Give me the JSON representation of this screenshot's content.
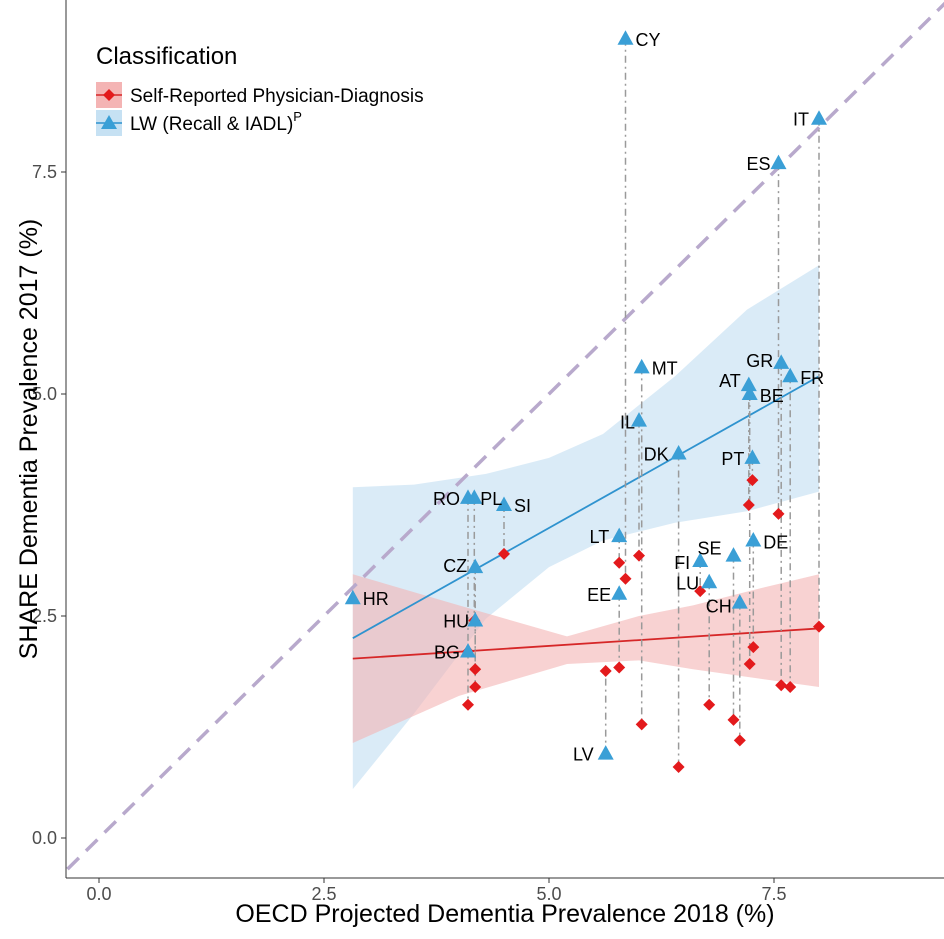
{
  "chart_data": {
    "type": "scatter",
    "xlabel": "OECD Projected Dementia Prevalence 2018 (%)",
    "ylabel": "SHARE Dementia Prevalence 2017 (%)",
    "xlim": [
      -0.35,
      9.45
    ],
    "ylim": [
      -0.4,
      9.5
    ],
    "x_ticks": [
      0.0,
      2.5,
      5.0,
      7.5
    ],
    "x_tick_labels": [
      "0.0",
      "2.5",
      "5.0",
      "7.5"
    ],
    "y_ticks": [
      0.0,
      2.5,
      5.0,
      7.5
    ],
    "y_tick_labels": [
      "0.0",
      "2.5",
      "5.0",
      "7.5"
    ],
    "grid": false,
    "legend": {
      "title": "Classification",
      "position": "top-left",
      "entries": [
        {
          "key": "self",
          "label": "Self-Reported Physician-Diagnosis",
          "marker": "diamond",
          "color": "#e31a1c",
          "band_color": "#f4b4b4"
        },
        {
          "key": "lw",
          "label": "LW (Recall & IADL)",
          "superscript": "P",
          "marker": "triangle",
          "color": "#3a9fd6",
          "band_color": "#c6e1f3"
        }
      ]
    },
    "reference_line": {
      "type": "identity",
      "style": "dashed",
      "color": "#b8a9cc"
    },
    "countries": [
      {
        "code": "HR",
        "x": 2.82,
        "lw": 2.7,
        "self": null
      },
      {
        "code": "BG",
        "x": 4.1,
        "lw": 2.1,
        "self": 1.5
      },
      {
        "code": "HU",
        "x": 4.18,
        "lw": 2.45,
        "self": 1.9
      },
      {
        "code": "CZ",
        "x": 4.18,
        "lw": 3.05,
        "self": 1.7
      },
      {
        "code": "RO",
        "x": 4.1,
        "lw": 3.83,
        "self": 2.1
      },
      {
        "code": "PL",
        "x": 4.17,
        "lw": 3.83,
        "self": 2.45
      },
      {
        "code": "SI",
        "x": 4.5,
        "lw": 3.75,
        "self": 3.2
      },
      {
        "code": "LV",
        "x": 5.63,
        "lw": 0.95,
        "self": 1.88
      },
      {
        "code": "EE",
        "x": 5.78,
        "lw": 2.75,
        "self": 1.92
      },
      {
        "code": "LT",
        "x": 5.78,
        "lw": 3.4,
        "self": 3.1
      },
      {
        "code": "CY",
        "x": 5.85,
        "lw": 9.0,
        "self": 2.92
      },
      {
        "code": "IL",
        "x": 6.0,
        "lw": 4.7,
        "self": 3.18
      },
      {
        "code": "MT",
        "x": 6.03,
        "lw": 5.3,
        "self": 1.28
      },
      {
        "code": "DK",
        "x": 6.44,
        "lw": 4.33,
        "self": 0.8
      },
      {
        "code": "FI",
        "x": 6.68,
        "lw": 3.12,
        "self": 2.78
      },
      {
        "code": "LU",
        "x": 6.78,
        "lw": 2.88,
        "self": 1.5
      },
      {
        "code": "SE",
        "x": 7.05,
        "lw": 3.18,
        "self": 1.33
      },
      {
        "code": "CH",
        "x": 7.12,
        "lw": 2.65,
        "self": 1.1
      },
      {
        "code": "AT",
        "x": 7.22,
        "lw": 5.1,
        "self": 3.75
      },
      {
        "code": "BE",
        "x": 7.23,
        "lw": 5.0,
        "self": 1.96
      },
      {
        "code": "PT",
        "x": 7.26,
        "lw": 4.28,
        "self": 4.03
      },
      {
        "code": "DE",
        "x": 7.27,
        "lw": 3.35,
        "self": 2.15
      },
      {
        "code": "ES",
        "x": 7.55,
        "lw": 7.6,
        "self": 3.65
      },
      {
        "code": "GR",
        "x": 7.58,
        "lw": 5.35,
        "self": 1.72
      },
      {
        "code": "FR",
        "x": 7.68,
        "lw": 5.2,
        "self": 1.7
      },
      {
        "code": "IT",
        "x": 8.0,
        "lw": 8.1,
        "self": 2.38
      }
    ],
    "fits": {
      "self": {
        "x_range": [
          2.82,
          8.0
        ],
        "start": 2.02,
        "end": 2.36,
        "ci_lower": [
          [
            2.82,
            1.07
          ],
          [
            4.0,
            1.6
          ],
          [
            5.2,
            1.96
          ],
          [
            6.0,
            2.0
          ],
          [
            6.6,
            1.9
          ],
          [
            7.3,
            1.8
          ],
          [
            8.0,
            1.7
          ]
        ],
        "ci_upper": [
          [
            2.82,
            2.97
          ],
          [
            4.0,
            2.62
          ],
          [
            5.2,
            2.27
          ],
          [
            6.0,
            2.5
          ],
          [
            6.6,
            2.62
          ],
          [
            7.3,
            2.8
          ],
          [
            8.0,
            2.97
          ]
        ]
      },
      "lw": {
        "x_range": [
          2.82,
          8.0
        ],
        "start": 2.25,
        "end": 5.2,
        "ci_lower": [
          [
            2.82,
            0.55
          ],
          [
            3.5,
            1.4
          ],
          [
            4.3,
            2.47
          ],
          [
            5.0,
            3.05
          ],
          [
            5.6,
            3.35
          ],
          [
            6.4,
            3.55
          ],
          [
            7.2,
            3.68
          ],
          [
            8.0,
            3.9
          ]
        ],
        "ci_upper": [
          [
            2.82,
            3.95
          ],
          [
            3.5,
            3.98
          ],
          [
            4.3,
            4.1
          ],
          [
            5.0,
            4.28
          ],
          [
            5.6,
            4.55
          ],
          [
            6.4,
            5.2
          ],
          [
            7.2,
            5.95
          ],
          [
            8.0,
            6.45
          ]
        ]
      }
    }
  }
}
